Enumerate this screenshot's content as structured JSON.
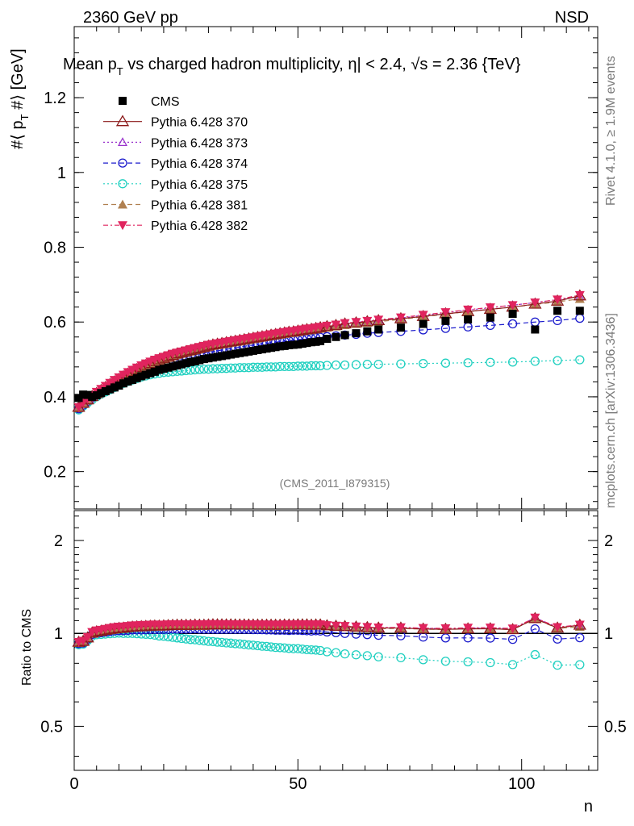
{
  "header": {
    "energy_label": "2360 GeV pp",
    "process_label": "NSD",
    "title_main": "Mean p",
    "title_sub": "T",
    "title_rest": " vs charged hadron multiplicity, ",
    "title_eta": "η",
    "title_eta_rest": "| < 2.4, ",
    "title_sqrt": "√",
    "title_s": "s = 2.36 {TeV}",
    "watermark": "(CMS_2011_I879315)",
    "side_text_top": "Rivet 4.1.0, ≥ 1.9M events",
    "side_text_bottom": "mcplots.cern.ch [arXiv:1306.3436]"
  },
  "colors": {
    "CMS": "#000000",
    "p370": "#8b1a1a",
    "p373": "#9932cc",
    "p374": "#1a1acc",
    "p375": "#20d0c0",
    "p381": "#b08050",
    "p382": "#e0245e"
  },
  "chart_data": {
    "type": "scatter",
    "main": {
      "ylabel": "#⟨ p_T #⟩ [GeV]",
      "ylim": [
        0.1,
        1.39
      ],
      "yticks": [
        "0.2",
        "0.4",
        "0.6",
        "0.8",
        "1",
        "1.2"
      ],
      "ytick_values": [
        0.2,
        0.4,
        0.6,
        0.8,
        1.0,
        1.2
      ]
    },
    "ratio": {
      "ylabel": "Ratio to CMS",
      "ylim": [
        0.36,
        2.5
      ],
      "yticks": [
        "0.5",
        "1",
        "2"
      ],
      "ytick_values": [
        0.5,
        1.0,
        2.0
      ],
      "log": true
    },
    "xaxis": {
      "xlabel": "n",
      "xlim": [
        0,
        117
      ],
      "xticks": [
        "0",
        "50",
        "100"
      ],
      "xtick_values": [
        0,
        50,
        100
      ]
    },
    "legend": [
      {
        "key": "CMS",
        "label": "CMS",
        "marker": "square-filled",
        "line": "none"
      },
      {
        "key": "p370",
        "label": "Pythia 6.428 370",
        "marker": "triangle-open",
        "line": "solid"
      },
      {
        "key": "p373",
        "label": "Pythia 6.428 373",
        "marker": "triangle-open-small",
        "line": "dotted"
      },
      {
        "key": "p374",
        "label": "Pythia 6.428 374",
        "marker": "circle-open",
        "line": "dashed"
      },
      {
        "key": "p375",
        "label": "Pythia 6.428 375",
        "marker": "circle-open",
        "line": "dotted"
      },
      {
        "key": "p381",
        "label": "Pythia 6.428 381",
        "marker": "triangle-filled",
        "line": "dashed"
      },
      {
        "key": "p382",
        "label": "Pythia 6.428 382",
        "marker": "triangle-down-filled",
        "line": "dashdot"
      }
    ],
    "x": [
      1,
      2,
      3,
      4,
      5,
      6,
      7,
      8,
      9,
      10,
      11,
      12,
      13,
      14,
      15,
      16,
      17,
      18,
      19,
      20,
      21,
      22,
      23,
      24,
      25,
      26,
      27,
      28,
      29,
      30,
      31,
      32,
      33,
      34,
      35,
      36,
      37,
      38,
      39,
      40,
      41,
      42,
      43,
      44,
      45,
      46,
      47,
      48,
      49,
      50,
      51,
      52,
      53,
      54,
      55,
      56.5,
      58.5,
      60.5,
      63,
      65.5,
      68,
      73,
      78,
      83,
      88,
      93,
      98,
      103,
      108,
      113
    ],
    "series": [
      {
        "key": "CMS",
        "name": "CMS",
        "values": [
          0.397,
          0.406,
          0.405,
          0.4,
          0.404,
          0.41,
          0.415,
          0.42,
          0.425,
          0.43,
          0.436,
          0.441,
          0.445,
          0.45,
          0.455,
          0.459,
          0.463,
          0.467,
          0.472,
          0.475,
          0.478,
          0.481,
          0.484,
          0.487,
          0.49,
          0.493,
          0.495,
          0.498,
          0.501,
          0.503,
          0.505,
          0.507,
          0.509,
          0.511,
          0.513,
          0.515,
          0.517,
          0.519,
          0.521,
          0.523,
          0.525,
          0.527,
          0.529,
          0.531,
          0.533,
          0.535,
          0.536,
          0.538,
          0.539,
          0.54,
          0.542,
          0.544,
          0.546,
          0.547,
          0.549,
          0.555,
          0.56,
          0.565,
          0.57,
          0.575,
          0.58,
          0.585,
          0.595,
          0.603,
          0.607,
          0.612,
          0.622,
          0.58,
          0.63,
          0.63
        ]
      },
      {
        "key": "p370",
        "name": "Pythia 6.428 370",
        "values": [
          0.372,
          0.383,
          0.392,
          0.401,
          0.409,
          0.417,
          0.425,
          0.433,
          0.44,
          0.447,
          0.454,
          0.461,
          0.467,
          0.473,
          0.479,
          0.484,
          0.489,
          0.494,
          0.499,
          0.503,
          0.507,
          0.511,
          0.515,
          0.518,
          0.521,
          0.524,
          0.527,
          0.53,
          0.533,
          0.536,
          0.539,
          0.541,
          0.543,
          0.545,
          0.547,
          0.549,
          0.551,
          0.553,
          0.555,
          0.557,
          0.559,
          0.561,
          0.563,
          0.565,
          0.567,
          0.569,
          0.571,
          0.573,
          0.574,
          0.576,
          0.578,
          0.58,
          0.581,
          0.583,
          0.585,
          0.588,
          0.591,
          0.595,
          0.598,
          0.601,
          0.604,
          0.609,
          0.615,
          0.622,
          0.628,
          0.634,
          0.64,
          0.648,
          0.656,
          0.67
        ]
      },
      {
        "key": "p373",
        "name": "Pythia 6.428 373",
        "values": [
          0.373,
          0.384,
          0.393,
          0.402,
          0.41,
          0.418,
          0.426,
          0.434,
          0.441,
          0.448,
          0.455,
          0.462,
          0.468,
          0.474,
          0.48,
          0.485,
          0.49,
          0.495,
          0.5,
          0.504,
          0.508,
          0.512,
          0.516,
          0.519,
          0.522,
          0.525,
          0.528,
          0.531,
          0.534,
          0.537,
          0.54,
          0.542,
          0.544,
          0.546,
          0.548,
          0.55,
          0.552,
          0.554,
          0.556,
          0.558,
          0.56,
          0.562,
          0.564,
          0.566,
          0.568,
          0.57,
          0.572,
          0.574,
          0.575,
          0.577,
          0.579,
          0.581,
          0.582,
          0.584,
          0.586,
          0.589,
          0.592,
          0.596,
          0.599,
          0.602,
          0.605,
          0.611,
          0.618,
          0.625,
          0.632,
          0.638,
          0.645,
          0.652,
          0.66,
          0.668
        ]
      },
      {
        "key": "p374",
        "name": "Pythia 6.428 374",
        "values": [
          0.368,
          0.378,
          0.388,
          0.397,
          0.405,
          0.412,
          0.419,
          0.426,
          0.433,
          0.439,
          0.445,
          0.451,
          0.457,
          0.462,
          0.467,
          0.472,
          0.477,
          0.481,
          0.486,
          0.489,
          0.493,
          0.497,
          0.5,
          0.503,
          0.506,
          0.509,
          0.512,
          0.514,
          0.517,
          0.519,
          0.521,
          0.523,
          0.525,
          0.527,
          0.529,
          0.531,
          0.533,
          0.535,
          0.537,
          0.538,
          0.54,
          0.542,
          0.543,
          0.545,
          0.546,
          0.548,
          0.549,
          0.55,
          0.552,
          0.553,
          0.554,
          0.555,
          0.556,
          0.558,
          0.559,
          0.561,
          0.563,
          0.565,
          0.567,
          0.57,
          0.572,
          0.575,
          0.579,
          0.583,
          0.587,
          0.591,
          0.595,
          0.6,
          0.604,
          0.61
        ]
      },
      {
        "key": "p375",
        "name": "Pythia 6.428 375",
        "values": [
          0.365,
          0.375,
          0.384,
          0.392,
          0.4,
          0.407,
          0.413,
          0.419,
          0.425,
          0.431,
          0.436,
          0.441,
          0.445,
          0.449,
          0.453,
          0.456,
          0.459,
          0.461,
          0.463,
          0.465,
          0.466,
          0.467,
          0.468,
          0.469,
          0.47,
          0.471,
          0.472,
          0.473,
          0.474,
          0.474,
          0.475,
          0.475,
          0.476,
          0.476,
          0.477,
          0.477,
          0.478,
          0.478,
          0.478,
          0.479,
          0.479,
          0.479,
          0.48,
          0.48,
          0.48,
          0.481,
          0.481,
          0.481,
          0.481,
          0.482,
          0.482,
          0.482,
          0.483,
          0.483,
          0.483,
          0.484,
          0.485,
          0.485,
          0.486,
          0.487,
          0.487,
          0.488,
          0.489,
          0.49,
          0.491,
          0.492,
          0.493,
          0.495,
          0.497,
          0.499
        ]
      },
      {
        "key": "p381",
        "name": "Pythia 6.428 381",
        "values": [
          0.37,
          0.381,
          0.39,
          0.399,
          0.407,
          0.415,
          0.423,
          0.43,
          0.437,
          0.444,
          0.451,
          0.458,
          0.464,
          0.47,
          0.476,
          0.481,
          0.486,
          0.491,
          0.496,
          0.5,
          0.504,
          0.508,
          0.512,
          0.515,
          0.518,
          0.521,
          0.524,
          0.527,
          0.53,
          0.533,
          0.536,
          0.538,
          0.54,
          0.542,
          0.544,
          0.546,
          0.548,
          0.55,
          0.552,
          0.554,
          0.556,
          0.558,
          0.56,
          0.562,
          0.564,
          0.566,
          0.568,
          0.57,
          0.571,
          0.573,
          0.575,
          0.577,
          0.578,
          0.58,
          0.582,
          0.585,
          0.588,
          0.592,
          0.595,
          0.598,
          0.601,
          0.607,
          0.614,
          0.621,
          0.628,
          0.634,
          0.64,
          0.647,
          0.654,
          0.662
        ]
      },
      {
        "key": "p382",
        "name": "Pythia 6.428 382",
        "values": [
          0.372,
          0.384,
          0.394,
          0.404,
          0.413,
          0.421,
          0.429,
          0.437,
          0.445,
          0.452,
          0.459,
          0.466,
          0.472,
          0.478,
          0.484,
          0.489,
          0.494,
          0.499,
          0.503,
          0.507,
          0.511,
          0.515,
          0.518,
          0.521,
          0.524,
          0.527,
          0.53,
          0.533,
          0.536,
          0.539,
          0.541,
          0.543,
          0.545,
          0.547,
          0.549,
          0.551,
          0.553,
          0.555,
          0.557,
          0.559,
          0.561,
          0.563,
          0.565,
          0.567,
          0.569,
          0.571,
          0.573,
          0.575,
          0.576,
          0.578,
          0.58,
          0.582,
          0.583,
          0.585,
          0.587,
          0.59,
          0.593,
          0.597,
          0.6,
          0.603,
          0.606,
          0.612,
          0.619,
          0.626,
          0.633,
          0.639,
          0.645,
          0.652,
          0.66,
          0.672
        ]
      }
    ]
  }
}
